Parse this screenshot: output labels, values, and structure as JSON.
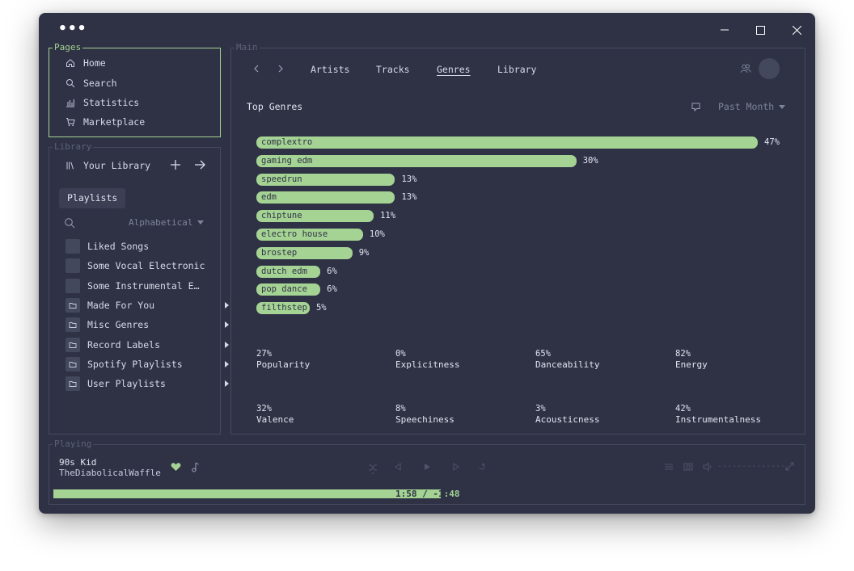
{
  "window": {
    "menu_dots": "•••"
  },
  "pages": {
    "title": "Pages",
    "items": [
      {
        "label": "Home",
        "icon": "home-icon"
      },
      {
        "label": "Search",
        "icon": "search-icon"
      },
      {
        "label": "Statistics",
        "icon": "statistics-icon"
      },
      {
        "label": "Marketplace",
        "icon": "cart-icon"
      }
    ]
  },
  "library": {
    "title": "Library",
    "header": "Your Library",
    "filter_chip": "Playlists",
    "sort": "Alphabetical",
    "items": [
      {
        "label": "Liked Songs",
        "type": "playlist"
      },
      {
        "label": "Some Vocal Electronic",
        "type": "playlist"
      },
      {
        "label": "Some Instrumental Electronic",
        "type": "playlist"
      },
      {
        "label": "Made For You",
        "type": "folder"
      },
      {
        "label": "Misc Genres",
        "type": "folder"
      },
      {
        "label": "Record Labels",
        "type": "folder"
      },
      {
        "label": "Spotify Playlists",
        "type": "folder"
      },
      {
        "label": "User Playlists",
        "type": "folder"
      }
    ]
  },
  "main": {
    "title": "Main",
    "tabs": [
      {
        "label": "Artists",
        "active": false
      },
      {
        "label": "Tracks",
        "active": false
      },
      {
        "label": "Genres",
        "active": true
      },
      {
        "label": "Library",
        "active": false
      }
    ],
    "section_title": "Top Genres",
    "period": "Past Month"
  },
  "chart_data": {
    "type": "bar",
    "orientation": "horizontal",
    "title": "Top Genres",
    "categories": [
      "complextro",
      "gaming edm",
      "speedrun",
      "edm",
      "chiptune",
      "electro house",
      "brostep",
      "dutch edm",
      "pop dance",
      "filthstep"
    ],
    "values": [
      47,
      30,
      13,
      13,
      11,
      10,
      9,
      6,
      6,
      5
    ],
    "value_labels": [
      "47%",
      "30%",
      "13%",
      "13%",
      "11%",
      "10%",
      "9%",
      "6%",
      "6%",
      "5%"
    ],
    "xlim": [
      0,
      47
    ],
    "bar_color": "#a4d394"
  },
  "stats": [
    {
      "value": "27%",
      "label": "Popularity"
    },
    {
      "value": "0%",
      "label": "Explicitness"
    },
    {
      "value": "65%",
      "label": "Danceability"
    },
    {
      "value": "82%",
      "label": "Energy"
    },
    {
      "value": "32%",
      "label": "Valence"
    },
    {
      "value": "8%",
      "label": "Speechiness"
    },
    {
      "value": "3%",
      "label": "Acousticness"
    },
    {
      "value": "42%",
      "label": "Instrumentalness"
    }
  ],
  "player": {
    "title": "Playing",
    "track": "90s Kid",
    "artist": "TheDiabolicalWaffle",
    "time": "1:58 / -1:48",
    "time_elapsed": "1:58 / -1",
    "time_rest": ":48",
    "progress": 0.52,
    "volume_dashes": "--------------",
    "liked": true
  },
  "colors": {
    "accent": "#a4d394",
    "background": "#2f3245",
    "border": "#464a60"
  }
}
